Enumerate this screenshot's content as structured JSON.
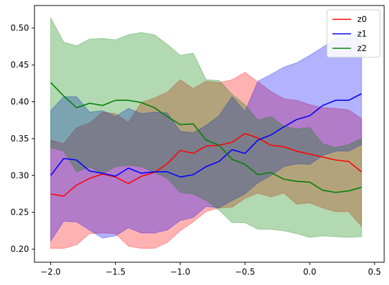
{
  "chart_data": {
    "type": "line",
    "title": "",
    "xlabel": "",
    "ylabel": "",
    "xlim": [
      -2.1,
      2.5
    ],
    "ylim": [
      0.19,
      0.525
    ],
    "xticks": [
      -2.0,
      -1.5,
      -1.0,
      -0.5,
      0.0,
      0.5
    ],
    "xtick_labels": [
      "−2.0",
      "−1.5",
      "−1.0",
      "−0.5",
      "0.0",
      "0.5"
    ],
    "yticks": [
      0.2,
      0.25,
      0.3,
      0.35,
      0.4,
      0.45,
      0.5
    ],
    "ytick_labels": [
      "0.20",
      "0.25",
      "0.30",
      "0.35",
      "0.40",
      "0.45",
      "0.50"
    ],
    "grid": false,
    "legend_position": "top-right",
    "x": [
      -2.0,
      -1.9,
      -1.8,
      -1.7,
      -1.6,
      -1.5,
      -1.4,
      -1.3,
      -1.2,
      -1.1,
      -1.0,
      -0.9,
      -0.8,
      -0.7,
      -0.6,
      -0.5,
      -0.4,
      -0.3,
      -0.2,
      -0.1,
      0.0,
      0.1,
      0.2,
      0.3,
      0.4
    ],
    "series": [
      {
        "name": "z0",
        "color": "#ff0000",
        "values": [
          0.275,
          0.272,
          0.287,
          0.296,
          0.302,
          0.298,
          0.289,
          0.299,
          0.304,
          0.316,
          0.334,
          0.33,
          0.34,
          0.341,
          0.345,
          0.357,
          0.351,
          0.341,
          0.339,
          0.333,
          0.329,
          0.325,
          0.321,
          0.319,
          0.305
        ],
        "lower": [
          0.201,
          0.201,
          0.206,
          0.221,
          0.222,
          0.221,
          0.204,
          0.201,
          0.201,
          0.209,
          0.225,
          0.237,
          0.251,
          0.256,
          0.257,
          0.269,
          0.276,
          0.271,
          0.276,
          0.261,
          0.263,
          0.256,
          0.251,
          0.251,
          0.231
        ],
        "upper": [
          0.348,
          0.343,
          0.365,
          0.371,
          0.386,
          0.384,
          0.372,
          0.399,
          0.405,
          0.413,
          0.43,
          0.418,
          0.428,
          0.426,
          0.43,
          0.44,
          0.427,
          0.414,
          0.404,
          0.402,
          0.396,
          0.392,
          0.391,
          0.389,
          0.377
        ]
      },
      {
        "name": "z1",
        "color": "#0000ff",
        "values": [
          0.3,
          0.323,
          0.321,
          0.306,
          0.303,
          0.299,
          0.31,
          0.303,
          0.305,
          0.305,
          0.298,
          0.301,
          0.312,
          0.319,
          0.335,
          0.33,
          0.348,
          0.355,
          0.366,
          0.376,
          0.381,
          0.395,
          0.402,
          0.402,
          0.411
        ],
        "lower": [
          0.211,
          0.238,
          0.237,
          0.226,
          0.215,
          0.218,
          0.229,
          0.222,
          0.222,
          0.226,
          0.239,
          0.243,
          0.258,
          0.256,
          0.266,
          0.275,
          0.29,
          0.3,
          0.312,
          0.316,
          0.315,
          0.327,
          0.333,
          0.333,
          0.342
        ],
        "upper": [
          0.388,
          0.407,
          0.407,
          0.386,
          0.388,
          0.38,
          0.391,
          0.384,
          0.386,
          0.385,
          0.36,
          0.358,
          0.368,
          0.381,
          0.407,
          0.387,
          0.428,
          0.437,
          0.447,
          0.453,
          0.463,
          0.474,
          0.486,
          0.487,
          0.495
        ]
      },
      {
        "name": "z2",
        "color": "#008000",
        "values": [
          0.426,
          0.408,
          0.392,
          0.398,
          0.395,
          0.402,
          0.402,
          0.399,
          0.392,
          0.38,
          0.369,
          0.37,
          0.348,
          0.341,
          0.322,
          0.315,
          0.301,
          0.304,
          0.295,
          0.292,
          0.291,
          0.28,
          0.277,
          0.279,
          0.284
        ],
        "lower": [
          0.338,
          0.333,
          0.305,
          0.312,
          0.302,
          0.312,
          0.314,
          0.312,
          0.304,
          0.296,
          0.277,
          0.275,
          0.266,
          0.253,
          0.236,
          0.236,
          0.227,
          0.227,
          0.225,
          0.221,
          0.216,
          0.218,
          0.217,
          0.216,
          0.217
        ],
        "upper": [
          0.514,
          0.481,
          0.476,
          0.485,
          0.486,
          0.484,
          0.491,
          0.494,
          0.491,
          0.478,
          0.463,
          0.466,
          0.43,
          0.429,
          0.41,
          0.396,
          0.375,
          0.38,
          0.367,
          0.363,
          0.365,
          0.343,
          0.338,
          0.342,
          0.35
        ]
      }
    ]
  }
}
